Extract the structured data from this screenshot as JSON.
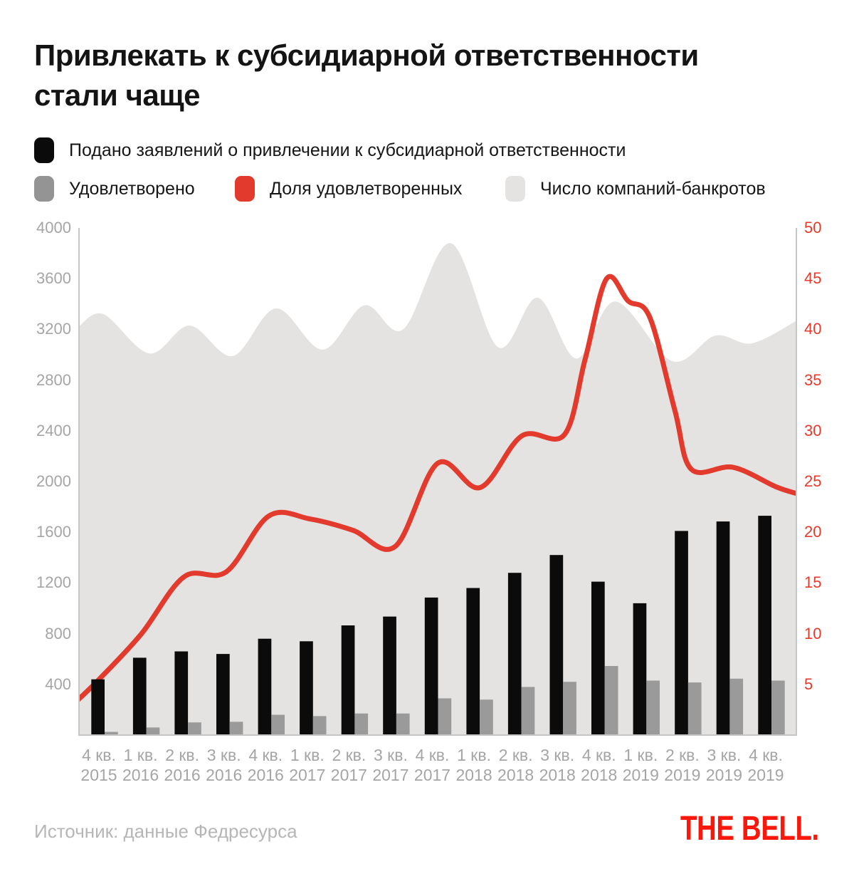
{
  "title": "Привлекать к субсидиарной ответственности стали чаще",
  "legend": [
    {
      "label": "Подано заявлений о привлечении к субсидиарной ответственности",
      "color": "#0b0b0b"
    },
    {
      "label": "Удовлетворено",
      "color": "#949494"
    },
    {
      "label": "Доля удовлетворенных",
      "color": "#e23a2c"
    },
    {
      "label": "Число компаний-банкротов",
      "color": "#e4e3e1"
    }
  ],
  "footer": {
    "source": "Источник: данные Федресурса",
    "logo": "THE BELL."
  },
  "colors": {
    "bar_filed": "#0b0b0b",
    "bar_granted": "#9a9a9a",
    "area_bankrupts": "#e4e3e1",
    "line_share": "#e23a2c",
    "right_axis_text": "#e8392b",
    "axis_line": "#c6c6c6",
    "tick_text": "#a5a5a5",
    "logo_red": "#f9180b"
  },
  "chart_data": {
    "type": "combo-bar-area-line",
    "categories": [
      "4 кв. 2015",
      "1 кв. 2016",
      "2 кв. 2016",
      "3 кв. 2016",
      "4 кв. 2016",
      "1 кв. 2017",
      "2 кв. 2017",
      "3 кв. 2017",
      "4 кв. 2017",
      "1 кв. 2018",
      "2 кв. 2018",
      "3 кв. 2018",
      "4 кв. 2018",
      "1 кв. 2019",
      "2 кв. 2019",
      "3 кв. 2019",
      "4 кв. 2019"
    ],
    "x_tick_lines": [
      [
        "4 кв.",
        "2015"
      ],
      [
        "1 кв.",
        "2016"
      ],
      [
        "2 кв.",
        "2016"
      ],
      [
        "3 кв.",
        "2016"
      ],
      [
        "4 кв.",
        "2016"
      ],
      [
        "1 кв.",
        "2017"
      ],
      [
        "2 кв.",
        "2017"
      ],
      [
        "3 кв.",
        "2017"
      ],
      [
        "4 кв.",
        "2017"
      ],
      [
        "1 кв.",
        "2018"
      ],
      [
        "2 кв.",
        "2018"
      ],
      [
        "3 кв.",
        "2018"
      ],
      [
        "4 кв.",
        "2018"
      ],
      [
        "1 кв.",
        "2019"
      ],
      [
        "2 кв.",
        "2019"
      ],
      [
        "3 кв.",
        "2019"
      ],
      [
        "4 кв.",
        "2019"
      ]
    ],
    "left_axis": {
      "min": 0,
      "max": 4000,
      "ticks": [
        4000,
        3600,
        3200,
        2800,
        2400,
        2000,
        1600,
        1200,
        800,
        400
      ]
    },
    "right_axis": {
      "min": 0,
      "max": 50,
      "ticks": [
        50,
        45,
        40,
        35,
        30,
        25,
        20,
        15,
        10,
        5
      ]
    },
    "grid": "off",
    "legend_position": "top",
    "series": [
      {
        "name": "Подано заявлений о привлечении к субсидиарной ответственности",
        "type": "bar",
        "axis": "left",
        "values": [
          440,
          610,
          660,
          640,
          760,
          740,
          865,
          935,
          1085,
          1160,
          1280,
          1420,
          1210,
          1040,
          1610,
          1685,
          1730
        ]
      },
      {
        "name": "Удовлетворено",
        "type": "bar",
        "axis": "left",
        "values": [
          25,
          60,
          100,
          105,
          160,
          150,
          170,
          170,
          290,
          280,
          380,
          420,
          545,
          430,
          415,
          445,
          430
        ]
      },
      {
        "name": "Число компаний-банкротов",
        "type": "area",
        "axis": "left",
        "values": [
          3330,
          3040,
          3230,
          3000,
          3350,
          3060,
          3370,
          3220,
          3790,
          3260,
          3390,
          3060,
          3400,
          3060,
          3010,
          3130,
          3180
        ],
        "curve_points": [
          [
            0,
            3220
          ],
          [
            0.035,
            3320
          ],
          [
            0.099,
            3010
          ],
          [
            0.155,
            3230
          ],
          [
            0.215,
            2990
          ],
          [
            0.275,
            3365
          ],
          [
            0.34,
            3040
          ],
          [
            0.398,
            3390
          ],
          [
            0.452,
            3200
          ],
          [
            0.518,
            3880
          ],
          [
            0.584,
            3060
          ],
          [
            0.639,
            3450
          ],
          [
            0.693,
            2970
          ],
          [
            0.747,
            3420
          ],
          [
            0.826,
            2950
          ],
          [
            0.886,
            3150
          ],
          [
            0.937,
            3090
          ],
          [
            1,
            3270
          ]
        ]
      },
      {
        "name": "Доля удовлетворенных",
        "type": "line",
        "axis": "right",
        "values": [
          5.5,
          10,
          15.6,
          16.1,
          21.6,
          21.3,
          20.2,
          18.6,
          26.8,
          24.4,
          29.5,
          29.6,
          45,
          41.2,
          26.2,
          26.4,
          24.5
        ],
        "curve_points": [
          [
            0,
            3.5
          ],
          [
            0.029,
            5.5
          ],
          [
            0.088,
            10
          ],
          [
            0.147,
            15.6
          ],
          [
            0.206,
            16.1
          ],
          [
            0.265,
            21.6
          ],
          [
            0.323,
            21.3
          ],
          [
            0.382,
            20.2
          ],
          [
            0.441,
            18.6
          ],
          [
            0.5,
            26.8
          ],
          [
            0.559,
            24.4
          ],
          [
            0.617,
            29.5
          ],
          [
            0.676,
            29.6
          ],
          [
            0.705,
            37
          ],
          [
            0.735,
            45
          ],
          [
            0.765,
            42.8
          ],
          [
            0.795,
            41.2
          ],
          [
            0.83,
            32
          ],
          [
            0.853,
            26.2
          ],
          [
            0.911,
            26.4
          ],
          [
            0.97,
            24.5
          ],
          [
            1,
            23.8
          ]
        ]
      }
    ]
  }
}
